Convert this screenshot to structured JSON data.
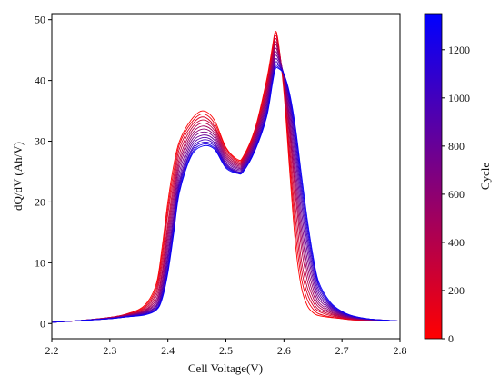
{
  "chart_data": {
    "type": "line",
    "title": "",
    "xlabel": "Cell Voltage(V)",
    "ylabel": "dQ/dV (Ah/V)",
    "xlim": [
      2.2,
      2.8
    ],
    "ylim": [
      -2.5,
      51
    ],
    "xticks": [
      2.2,
      2.3,
      2.4,
      2.5,
      2.6,
      2.7,
      2.8
    ],
    "yticks": [
      0,
      10,
      20,
      30,
      40,
      50
    ],
    "grid": false,
    "colorbar": {
      "label": "Cycle",
      "range": [
        0,
        1350
      ],
      "ticks": [
        0,
        200,
        400,
        600,
        800,
        1000,
        1200
      ],
      "color_low": "#ff0000",
      "color_high": "#0000ff"
    },
    "x": [
      2.2,
      2.25,
      2.3,
      2.33,
      2.36,
      2.38,
      2.39,
      2.4,
      2.41,
      2.42,
      2.44,
      2.46,
      2.48,
      2.5,
      2.52,
      2.53,
      2.55,
      2.57,
      2.58,
      2.585,
      2.59,
      2.6,
      2.61,
      2.62,
      2.63,
      2.64,
      2.65,
      2.66,
      2.68,
      2.7,
      2.72,
      2.75,
      2.8
    ],
    "series": [
      {
        "cycle": 0,
        "values": [
          0.2,
          0.5,
          1.0,
          1.6,
          3.0,
          6.5,
          12.5,
          20.0,
          26.0,
          30.0,
          33.5,
          35.0,
          33.5,
          29.0,
          27.0,
          27.5,
          32.0,
          40.0,
          45.5,
          48.0,
          46.5,
          38.0,
          25.0,
          13.0,
          6.0,
          3.0,
          1.8,
          1.3,
          1.0,
          0.8,
          0.6,
          0.5,
          0.4
        ]
      },
      {
        "cycle": 100,
        "values": [
          0.2,
          0.5,
          1.0,
          1.6,
          2.8,
          6.0,
          11.5,
          19.0,
          25.0,
          29.5,
          33.0,
          34.5,
          33.0,
          28.8,
          26.8,
          27.3,
          31.8,
          39.5,
          45.0,
          47.8,
          46.3,
          38.5,
          26.5,
          15.0,
          7.5,
          4.0,
          2.4,
          1.6,
          1.1,
          0.8,
          0.6,
          0.5,
          0.4
        ]
      },
      {
        "cycle": 200,
        "values": [
          0.2,
          0.5,
          1.0,
          1.5,
          2.6,
          5.5,
          10.5,
          18.0,
          24.0,
          28.8,
          32.5,
          34.0,
          32.5,
          28.5,
          26.6,
          27.1,
          31.5,
          39.0,
          44.5,
          47.3,
          46.0,
          39.0,
          28.0,
          17.0,
          9.0,
          5.0,
          3.0,
          2.0,
          1.3,
          0.9,
          0.7,
          0.5,
          0.4
        ]
      },
      {
        "cycle": 300,
        "values": [
          0.2,
          0.5,
          1.0,
          1.5,
          2.4,
          5.0,
          9.5,
          16.5,
          23.0,
          28.0,
          32.0,
          33.5,
          32.2,
          28.2,
          26.4,
          26.9,
          31.2,
          38.5,
          44.0,
          46.8,
          45.6,
          39.5,
          29.5,
          19.0,
          10.5,
          6.0,
          3.6,
          2.3,
          1.5,
          1.0,
          0.7,
          0.5,
          0.4
        ]
      },
      {
        "cycle": 400,
        "values": [
          0.2,
          0.5,
          0.9,
          1.4,
          2.2,
          4.5,
          8.5,
          15.5,
          22.0,
          27.2,
          31.5,
          33.0,
          31.8,
          27.9,
          26.2,
          26.7,
          30.9,
          38.0,
          43.5,
          46.3,
          45.2,
          40.0,
          31.0,
          21.0,
          12.5,
          7.2,
          4.3,
          2.7,
          1.7,
          1.1,
          0.8,
          0.6,
          0.4
        ]
      },
      {
        "cycle": 500,
        "values": [
          0.2,
          0.5,
          0.9,
          1.4,
          2.1,
          4.0,
          7.8,
          14.5,
          21.0,
          26.5,
          31.0,
          32.5,
          31.4,
          27.6,
          26.0,
          26.5,
          30.6,
          37.5,
          43.0,
          45.8,
          44.8,
          40.3,
          32.0,
          22.5,
          14.0,
          8.4,
          5.0,
          3.1,
          1.9,
          1.2,
          0.8,
          0.6,
          0.4
        ]
      },
      {
        "cycle": 600,
        "values": [
          0.2,
          0.5,
          0.9,
          1.3,
          2.0,
          3.6,
          7.0,
          13.5,
          20.0,
          25.8,
          30.5,
          32.0,
          31.0,
          27.3,
          25.8,
          26.3,
          30.3,
          37.0,
          42.5,
          45.2,
          44.4,
          40.5,
          33.0,
          24.0,
          15.5,
          9.5,
          5.8,
          3.5,
          2.1,
          1.3,
          0.9,
          0.6,
          0.4
        ]
      },
      {
        "cycle": 700,
        "values": [
          0.2,
          0.5,
          0.9,
          1.3,
          1.9,
          3.3,
          6.4,
          12.5,
          19.0,
          25.0,
          30.0,
          31.5,
          30.6,
          27.0,
          25.6,
          26.1,
          30.0,
          36.5,
          42.0,
          44.6,
          44.0,
          40.7,
          34.0,
          25.5,
          17.0,
          10.7,
          6.6,
          4.0,
          2.3,
          1.4,
          0.9,
          0.6,
          0.4
        ]
      },
      {
        "cycle": 800,
        "values": [
          0.2,
          0.5,
          0.9,
          1.2,
          1.8,
          3.0,
          5.8,
          11.5,
          18.0,
          24.2,
          29.5,
          31.0,
          30.2,
          26.7,
          25.4,
          25.9,
          29.7,
          36.0,
          41.5,
          44.0,
          43.6,
          40.9,
          35.0,
          27.0,
          18.5,
          12.0,
          7.4,
          4.5,
          2.5,
          1.5,
          1.0,
          0.7,
          0.4
        ]
      },
      {
        "cycle": 900,
        "values": [
          0.2,
          0.5,
          0.8,
          1.2,
          1.7,
          2.8,
          5.3,
          10.8,
          17.2,
          23.5,
          29.0,
          30.6,
          29.8,
          26.4,
          25.2,
          25.7,
          29.4,
          35.5,
          41.0,
          43.4,
          43.2,
          41.0,
          35.8,
          28.3,
          20.0,
          13.2,
          8.2,
          5.0,
          2.7,
          1.6,
          1.0,
          0.7,
          0.4
        ]
      },
      {
        "cycle": 1000,
        "values": [
          0.2,
          0.5,
          0.8,
          1.2,
          1.6,
          2.6,
          4.9,
          10.0,
          16.5,
          23.0,
          28.5,
          30.2,
          29.5,
          26.2,
          25.0,
          25.5,
          29.1,
          35.0,
          40.5,
          42.9,
          42.8,
          41.0,
          36.5,
          29.5,
          21.3,
          14.3,
          9.0,
          5.5,
          2.9,
          1.7,
          1.1,
          0.7,
          0.4
        ]
      },
      {
        "cycle": 1100,
        "values": [
          0.2,
          0.5,
          0.8,
          1.1,
          1.5,
          2.4,
          4.5,
          9.3,
          15.8,
          22.5,
          28.2,
          29.8,
          29.2,
          26.0,
          24.9,
          25.3,
          28.8,
          34.6,
          40.1,
          42.5,
          42.5,
          41.0,
          37.0,
          30.5,
          22.5,
          15.4,
          9.8,
          6.0,
          3.1,
          1.8,
          1.1,
          0.7,
          0.4
        ]
      },
      {
        "cycle": 1200,
        "values": [
          0.2,
          0.5,
          0.8,
          1.1,
          1.5,
          2.3,
          4.2,
          8.7,
          15.2,
          22.0,
          27.8,
          29.5,
          28.9,
          25.8,
          24.8,
          25.1,
          28.6,
          34.2,
          39.7,
          42.1,
          42.2,
          41.0,
          37.4,
          31.4,
          23.6,
          16.4,
          10.5,
          6.4,
          3.3,
          1.9,
          1.2,
          0.7,
          0.4
        ]
      },
      {
        "cycle": 1300,
        "values": [
          0.2,
          0.5,
          0.8,
          1.1,
          1.4,
          2.2,
          4.0,
          8.3,
          14.8,
          21.6,
          27.5,
          29.2,
          28.7,
          25.6,
          24.7,
          25.0,
          28.4,
          33.9,
          39.4,
          41.8,
          42.0,
          41.0,
          37.8,
          32.2,
          24.6,
          17.3,
          11.2,
          6.8,
          3.5,
          2.0,
          1.2,
          0.7,
          0.4
        ]
      }
    ]
  }
}
